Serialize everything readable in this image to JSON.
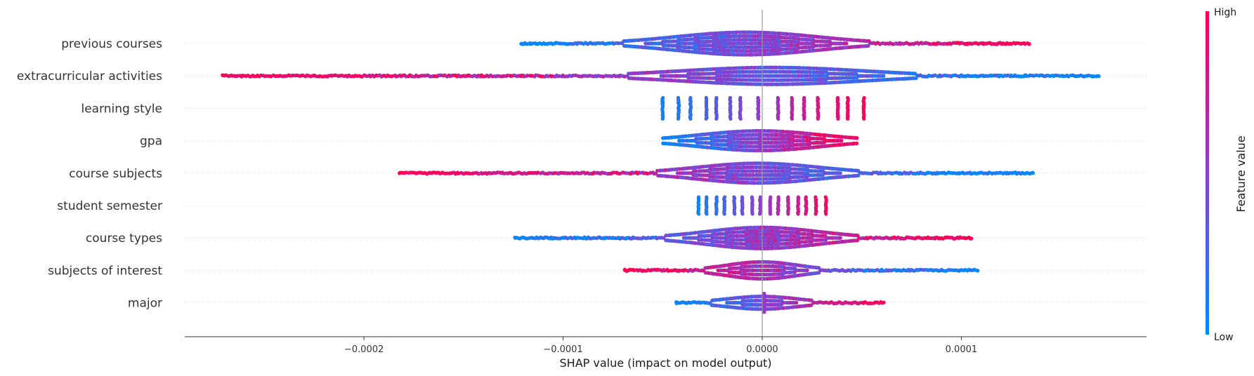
{
  "chart_data": {
    "type": "scatter",
    "subtype": "shap-beeswarm-summary",
    "xlabel": "SHAP value (impact on model output)",
    "xlim": [
      -0.00029,
      0.000193
    ],
    "xticks": [
      {
        "value": -0.0002,
        "label": "−0.0002"
      },
      {
        "value": -0.0001,
        "label": "−0.0001"
      },
      {
        "value": 0.0,
        "label": "0.0000"
      },
      {
        "value": 0.0001,
        "label": "0.0001"
      }
    ],
    "zero_line": 0.0,
    "features": [
      {
        "name": "previous courses",
        "kind": "cont",
        "min": -0.000121,
        "max": 0.000134,
        "direction": 1,
        "hub": -8e-06,
        "spread": 3.5e-05,
        "density": 16,
        "outliers_hi": [
          8.7e-05,
          9.3e-05,
          9.8e-05,
          0.000103,
          0.000107,
          0.000111,
          0.000114,
          0.000118,
          0.000121,
          0.000127,
          0.000134
        ],
        "outliers_lo": [
          -0.000121,
          -0.000113,
          -0.000108,
          -0.000104
        ]
      },
      {
        "name": "extracurricular activities",
        "kind": "cont",
        "min": -0.000271,
        "max": 0.000169,
        "direction": -1,
        "hub": 5e-06,
        "spread": 4.5e-05,
        "density": 12,
        "outliers_hi": [
          0.000102,
          0.000107,
          0.000111,
          0.000115,
          0.000119,
          0.000125,
          0.000129,
          0.000132,
          0.000166,
          0.000169
        ],
        "outliers_lo": [
          -0.000271,
          -0.000164,
          -0.000154,
          -0.000148,
          -0.000141,
          -0.000126,
          -0.000121,
          -0.000116,
          -0.000111,
          -0.000106
        ]
      },
      {
        "name": "learning style",
        "kind": "discrete",
        "columns": [
          {
            "x": -5e-05,
            "c": 0.05
          },
          {
            "x": -4.2e-05,
            "c": 0.12
          },
          {
            "x": -3.6e-05,
            "c": 0.18
          },
          {
            "x": -2.8e-05,
            "c": 0.25
          },
          {
            "x": -2.3e-05,
            "c": 0.32
          },
          {
            "x": -1.6e-05,
            "c": 0.38
          },
          {
            "x": -1.1e-05,
            "c": 0.45
          },
          {
            "x": -2e-06,
            "c": 0.52
          },
          {
            "x": 8e-06,
            "c": 0.6
          },
          {
            "x": 1.5e-05,
            "c": 0.68
          },
          {
            "x": 2.1e-05,
            "c": 0.74
          },
          {
            "x": 2.8e-05,
            "c": 0.8
          },
          {
            "x": 3.8e-05,
            "c": 0.86
          },
          {
            "x": 4.3e-05,
            "c": 0.92
          },
          {
            "x": 5.1e-05,
            "c": 0.98
          }
        ],
        "bar_half": 15
      },
      {
        "name": "gpa",
        "kind": "cont",
        "min": -5e-05,
        "max": 4.8e-05,
        "direction": 1,
        "hub": -1e-06,
        "spread": 3e-05,
        "density": 14,
        "outliers_hi": [],
        "outliers_lo": [],
        "center_spike": -1e-06
      },
      {
        "name": "course subjects",
        "kind": "cont",
        "min": -0.000182,
        "max": 0.000136,
        "direction": -1,
        "hub": -2e-06,
        "spread": 3e-05,
        "density": 14,
        "outliers_hi": [
          7.7e-05,
          8.3e-05,
          8.8e-05,
          9.5e-05,
          9.9e-05,
          0.000123,
          0.000136
        ],
        "outliers_lo": [
          -0.000182,
          -0.000153,
          -8.5e-05,
          -7.6e-05,
          -7.3e-05,
          -6.6e-05,
          -6.3e-05,
          -5.8e-05
        ]
      },
      {
        "name": "student semester",
        "kind": "discrete",
        "columns": [
          {
            "x": -3.2e-05,
            "c": 0.05
          },
          {
            "x": -2.8e-05,
            "c": 0.12
          },
          {
            "x": -2.3e-05,
            "c": 0.18
          },
          {
            "x": -1.9e-05,
            "c": 0.25
          },
          {
            "x": -1.4e-05,
            "c": 0.32
          },
          {
            "x": -1e-05,
            "c": 0.38
          },
          {
            "x": -5e-06,
            "c": 0.45
          },
          {
            "x": -1e-06,
            "c": 0.52
          },
          {
            "x": 4e-06,
            "c": 0.58
          },
          {
            "x": 8e-06,
            "c": 0.64
          },
          {
            "x": 1.3e-05,
            "c": 0.7
          },
          {
            "x": 1.8e-05,
            "c": 0.76
          },
          {
            "x": 2.2e-05,
            "c": 0.82
          },
          {
            "x": 2.7e-05,
            "c": 0.88
          },
          {
            "x": 3.2e-05,
            "c": 0.95
          }
        ],
        "bar_half": 12
      },
      {
        "name": "course types",
        "kind": "cont",
        "min": -0.000124,
        "max": 0.000105,
        "direction": 1,
        "hub": 0.0,
        "spread": 2.8e-05,
        "density": 15,
        "outliers_hi": [
          6.6e-05,
          8.3e-05,
          8.7e-05,
          8.9e-05,
          0.000105
        ],
        "outliers_lo": [
          -0.000124,
          -0.000106,
          -0.000101,
          -8.9e-05,
          -7.9e-05,
          -7.5e-05,
          -7.2e-05,
          -6.8e-05
        ]
      },
      {
        "name": "subjects of interest",
        "kind": "cont",
        "min": -6.9e-05,
        "max": 0.000108,
        "direction": -1,
        "hub": 0.0,
        "spread": 1.8e-05,
        "density": 12,
        "outliers_hi": [
          5.2e-05,
          5.6e-05,
          6e-05,
          6.7e-05,
          7.1e-05,
          0.000103,
          0.000108
        ],
        "outliers_lo": [
          -6.9e-05,
          -5.3e-05,
          -4.4e-05,
          -4.2e-05
        ]
      },
      {
        "name": "major",
        "kind": "cont",
        "min": -4.3e-05,
        "max": 6.1e-05,
        "direction": 1,
        "hub": 0.0,
        "spread": 1.8e-05,
        "density": 9,
        "outliers_hi": [
          6.1e-05
        ],
        "outliers_lo": [
          -4.3e-05
        ],
        "center_spike": 1e-06
      }
    ],
    "colorbar": {
      "title": "Feature value",
      "high_label": "High",
      "low_label": "Low",
      "low_color": "#008bfb",
      "mid_color": "#8a3fd1",
      "high_color": "#ff0052"
    },
    "grid": false
  }
}
